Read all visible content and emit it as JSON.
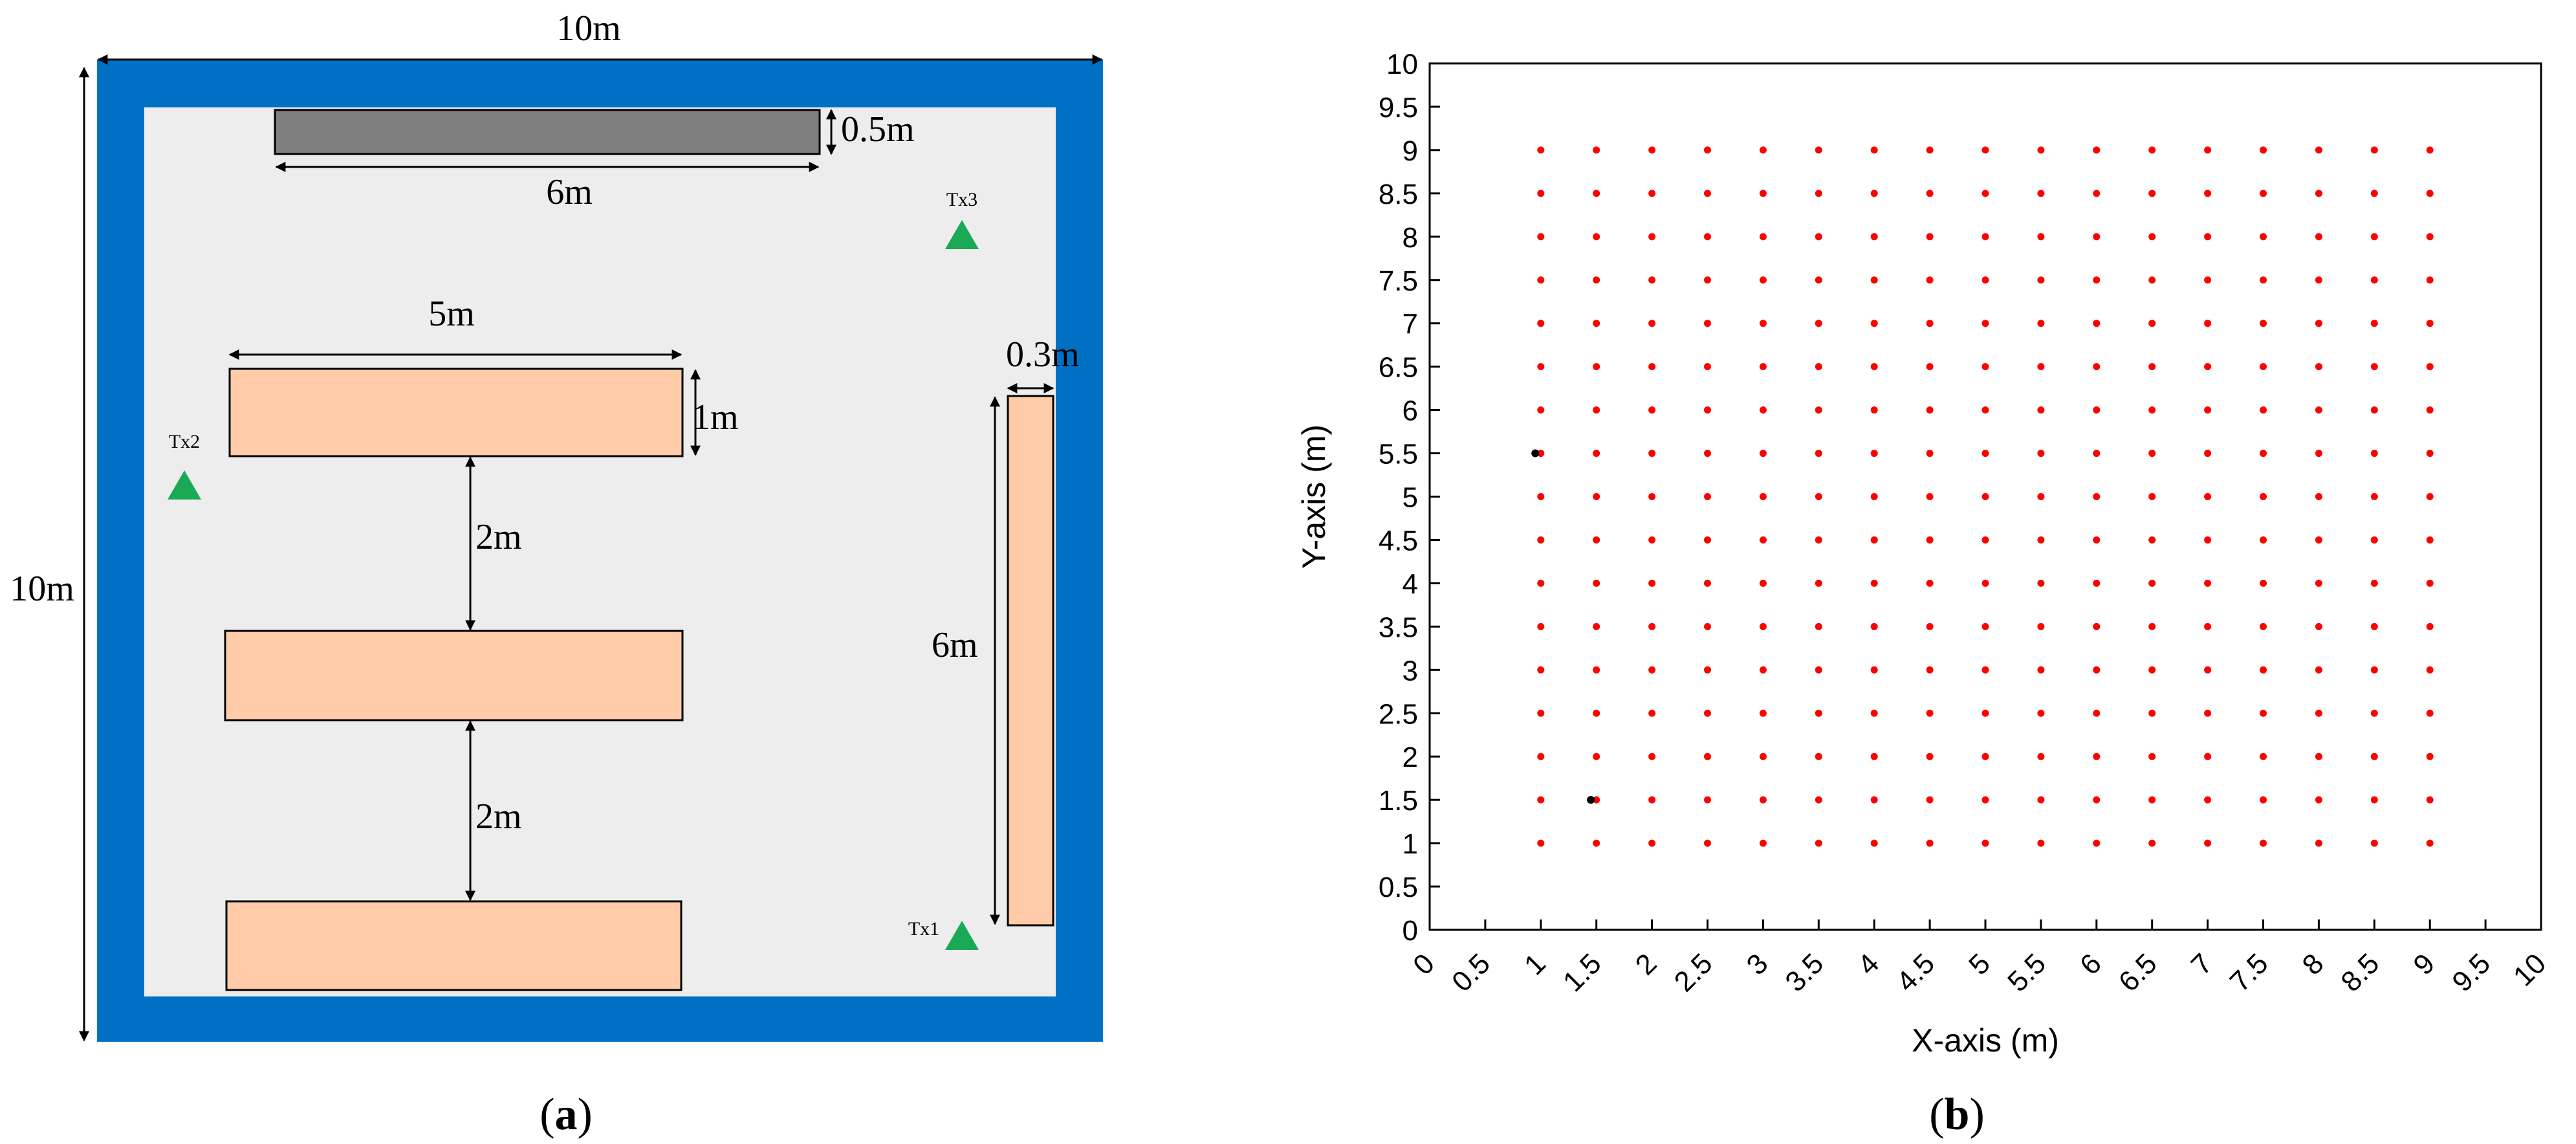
{
  "panel_a": {
    "caption_open": "(",
    "caption_letter": "a",
    "caption_close": ")",
    "colors": {
      "wall": "#0070C4",
      "floor": "#EDEDED",
      "table": "#FFCBA8",
      "dark_bar": "#7F7F7F",
      "transmitter": "#1AAA55"
    },
    "dimensions": {
      "room_width": "10m",
      "room_height": "10m",
      "top_bar_width": "6m",
      "top_bar_thickness": "0.5m",
      "table_width": "5m",
      "table_depth": "1m",
      "gap_upper": "2m",
      "gap_lower": "2m",
      "side_bar_thickness": "0.3m",
      "side_bar_length": "6m"
    },
    "transmitters": [
      {
        "label": "Tx1"
      },
      {
        "label": "Tx2"
      },
      {
        "label": "Tx3"
      }
    ]
  },
  "panel_b": {
    "caption_open": "(",
    "caption_letter": "b",
    "caption_close": ")"
  },
  "chart_data": {
    "type": "scatter",
    "title": "",
    "xlabel": "X-axis (m)",
    "ylabel": "Y-axis (m)",
    "xlim": [
      0,
      10
    ],
    "ylim": [
      0,
      10
    ],
    "x_ticks": [
      "0",
      "0.5",
      "1",
      "1.5",
      "2",
      "2.5",
      "3",
      "3.5",
      "4",
      "4.5",
      "5",
      "5.5",
      "6",
      "6.5",
      "7",
      "7.5",
      "8",
      "8.5",
      "9",
      "9.5",
      "10"
    ],
    "y_ticks": [
      "0",
      "0.5",
      "1",
      "1.5",
      "2",
      "2.5",
      "3",
      "3.5",
      "4",
      "4.5",
      "5",
      "5.5",
      "6",
      "6.5",
      "7",
      "7.5",
      "8",
      "8.5",
      "9",
      "9.5",
      "10"
    ],
    "grid": false,
    "series": [
      {
        "color": "#FF0000",
        "grid_points": {
          "x_start": 1,
          "x_end": 9,
          "y_start": 1,
          "y_end": 9,
          "step": 0.5
        }
      },
      {
        "color": "#000000",
        "points": [
          [
            0.95,
            5.5
          ],
          [
            1.45,
            1.5
          ]
        ]
      }
    ]
  }
}
